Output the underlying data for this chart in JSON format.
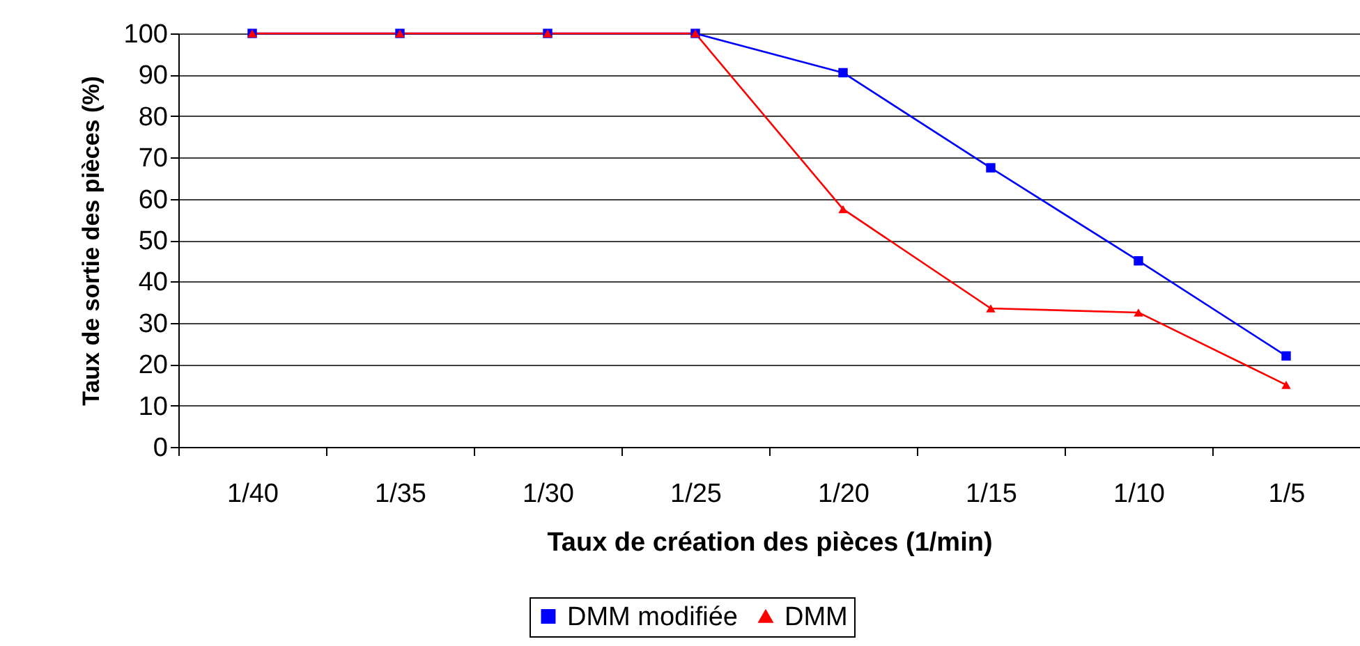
{
  "chart_data": {
    "type": "line",
    "xlabel": "Taux de création des pièces (1/min)",
    "ylabel": "Taux de sortie des pièces (%)",
    "categories": [
      "1/40",
      "1/35",
      "1/30",
      "1/25",
      "1/20",
      "1/15",
      "1/10",
      "1/5"
    ],
    "series": [
      {
        "name": "DMM modifiée",
        "color": "#0000ff",
        "marker": "square",
        "values": [
          100,
          100,
          100,
          100,
          90.5,
          67.5,
          45,
          22
        ]
      },
      {
        "name": "DMM",
        "color": "#ff0000",
        "marker": "triangle",
        "values": [
          100,
          100,
          100,
          100,
          57.5,
          33.5,
          32.5,
          15
        ]
      }
    ],
    "ylim": [
      0,
      100
    ],
    "yticks": [
      0,
      10,
      20,
      30,
      40,
      50,
      60,
      70,
      80,
      90,
      100
    ],
    "grid": "y",
    "legend": "bottom",
    "line_style": "solid"
  }
}
